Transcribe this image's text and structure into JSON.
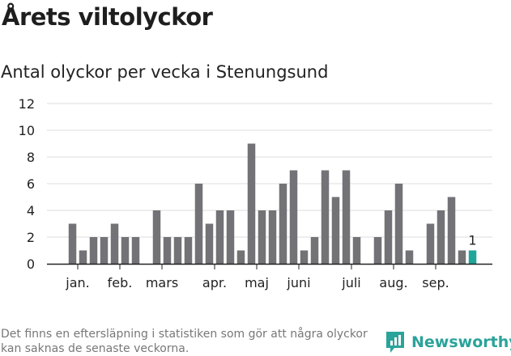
{
  "header": {
    "title": "Årets viltolyckor",
    "subtitle": "Antal olyckor per vecka i Stenungsund"
  },
  "chart_data": {
    "type": "bar",
    "title": "Antal olyckor per vecka i Stenungsund",
    "xlabel": "",
    "ylabel": "",
    "ylim": [
      0,
      12
    ],
    "yticks": [
      0,
      2,
      4,
      6,
      8,
      10,
      12
    ],
    "grid": true,
    "weeks": [
      1,
      2,
      3,
      4,
      5,
      6,
      7,
      8,
      9,
      10,
      11,
      12,
      13,
      14,
      15,
      16,
      17,
      18,
      19,
      20,
      21,
      22,
      23,
      24,
      25,
      26,
      27,
      28,
      29,
      30,
      31,
      32,
      33,
      34,
      35,
      36,
      37,
      38,
      39,
      40
    ],
    "values": [
      3,
      1,
      2,
      2,
      3,
      2,
      2,
      0,
      4,
      2,
      2,
      2,
      6,
      3,
      4,
      4,
      1,
      9,
      4,
      4,
      6,
      7,
      1,
      2,
      7,
      5,
      7,
      2,
      0,
      2,
      4,
      6,
      1,
      0,
      3,
      4,
      5,
      1,
      1,
      null
    ],
    "highlight_week": 39,
    "highlight_label": "1",
    "month_labels": [
      {
        "label": "jan.",
        "week": 1.5
      },
      {
        "label": "feb.",
        "week": 5.5
      },
      {
        "label": "mars",
        "week": 9.5
      },
      {
        "label": "apr.",
        "week": 14.5
      },
      {
        "label": "maj",
        "week": 18.5
      },
      {
        "label": "juni",
        "week": 22.5
      },
      {
        "label": "juli",
        "week": 27.5
      },
      {
        "label": "aug.",
        "week": 31.5
      },
      {
        "label": "sep.",
        "week": 35.5
      }
    ],
    "month_tick_weeks": [
      1.5,
      5.5,
      9.5,
      14.5,
      18.5,
      22.5,
      27.5,
      31.5,
      35.5
    ]
  },
  "footnote": "Det finns en eftersläpning i statistiken som gör att några olyckor kan saknas de senaste veckorna.",
  "brand": {
    "name": "Newsworthy"
  },
  "colors": {
    "bar": "#737276",
    "highlight": "#1ea69a",
    "grid": "#dddddd",
    "axis": "#222222",
    "text": "#222222"
  }
}
